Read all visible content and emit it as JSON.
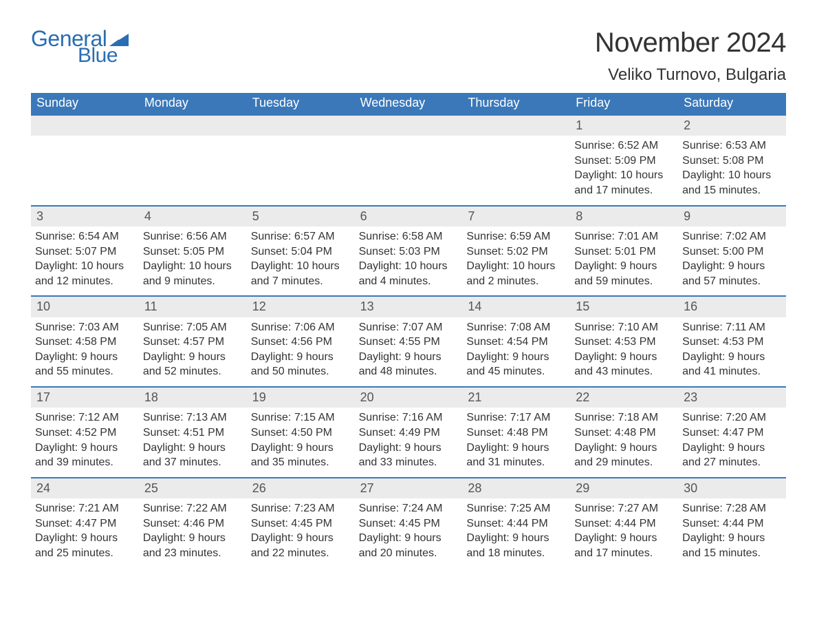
{
  "logo": {
    "text_general": "General",
    "text_blue": "Blue"
  },
  "title": "November 2024",
  "location": "Veliko Turnovo, Bulgaria",
  "colors": {
    "header_bg": "#3a78b9",
    "header_text": "#ffffff",
    "daynum_bg": "#ebebeb",
    "daynum_text": "#555555",
    "body_text": "#333333",
    "logo_color": "#2a6db3",
    "border": "#3a78b9",
    "background": "#ffffff"
  },
  "typography": {
    "title_fontsize": 40,
    "location_fontsize": 24,
    "weekday_fontsize": 18,
    "daynum_fontsize": 18,
    "body_fontsize": 16,
    "logo_fontsize": 32
  },
  "weekdays": [
    "Sunday",
    "Monday",
    "Tuesday",
    "Wednesday",
    "Thursday",
    "Friday",
    "Saturday"
  ],
  "first_day_of_week_index": 5,
  "days": [
    {
      "n": 1,
      "sunrise": "6:52 AM",
      "sunset": "5:09 PM",
      "daylight": "10 hours and 17 minutes."
    },
    {
      "n": 2,
      "sunrise": "6:53 AM",
      "sunset": "5:08 PM",
      "daylight": "10 hours and 15 minutes."
    },
    {
      "n": 3,
      "sunrise": "6:54 AM",
      "sunset": "5:07 PM",
      "daylight": "10 hours and 12 minutes."
    },
    {
      "n": 4,
      "sunrise": "6:56 AM",
      "sunset": "5:05 PM",
      "daylight": "10 hours and 9 minutes."
    },
    {
      "n": 5,
      "sunrise": "6:57 AM",
      "sunset": "5:04 PM",
      "daylight": "10 hours and 7 minutes."
    },
    {
      "n": 6,
      "sunrise": "6:58 AM",
      "sunset": "5:03 PM",
      "daylight": "10 hours and 4 minutes."
    },
    {
      "n": 7,
      "sunrise": "6:59 AM",
      "sunset": "5:02 PM",
      "daylight": "10 hours and 2 minutes."
    },
    {
      "n": 8,
      "sunrise": "7:01 AM",
      "sunset": "5:01 PM",
      "daylight": "9 hours and 59 minutes."
    },
    {
      "n": 9,
      "sunrise": "7:02 AM",
      "sunset": "5:00 PM",
      "daylight": "9 hours and 57 minutes."
    },
    {
      "n": 10,
      "sunrise": "7:03 AM",
      "sunset": "4:58 PM",
      "daylight": "9 hours and 55 minutes."
    },
    {
      "n": 11,
      "sunrise": "7:05 AM",
      "sunset": "4:57 PM",
      "daylight": "9 hours and 52 minutes."
    },
    {
      "n": 12,
      "sunrise": "7:06 AM",
      "sunset": "4:56 PM",
      "daylight": "9 hours and 50 minutes."
    },
    {
      "n": 13,
      "sunrise": "7:07 AM",
      "sunset": "4:55 PM",
      "daylight": "9 hours and 48 minutes."
    },
    {
      "n": 14,
      "sunrise": "7:08 AM",
      "sunset": "4:54 PM",
      "daylight": "9 hours and 45 minutes."
    },
    {
      "n": 15,
      "sunrise": "7:10 AM",
      "sunset": "4:53 PM",
      "daylight": "9 hours and 43 minutes."
    },
    {
      "n": 16,
      "sunrise": "7:11 AM",
      "sunset": "4:53 PM",
      "daylight": "9 hours and 41 minutes."
    },
    {
      "n": 17,
      "sunrise": "7:12 AM",
      "sunset": "4:52 PM",
      "daylight": "9 hours and 39 minutes."
    },
    {
      "n": 18,
      "sunrise": "7:13 AM",
      "sunset": "4:51 PM",
      "daylight": "9 hours and 37 minutes."
    },
    {
      "n": 19,
      "sunrise": "7:15 AM",
      "sunset": "4:50 PM",
      "daylight": "9 hours and 35 minutes."
    },
    {
      "n": 20,
      "sunrise": "7:16 AM",
      "sunset": "4:49 PM",
      "daylight": "9 hours and 33 minutes."
    },
    {
      "n": 21,
      "sunrise": "7:17 AM",
      "sunset": "4:48 PM",
      "daylight": "9 hours and 31 minutes."
    },
    {
      "n": 22,
      "sunrise": "7:18 AM",
      "sunset": "4:48 PM",
      "daylight": "9 hours and 29 minutes."
    },
    {
      "n": 23,
      "sunrise": "7:20 AM",
      "sunset": "4:47 PM",
      "daylight": "9 hours and 27 minutes."
    },
    {
      "n": 24,
      "sunrise": "7:21 AM",
      "sunset": "4:47 PM",
      "daylight": "9 hours and 25 minutes."
    },
    {
      "n": 25,
      "sunrise": "7:22 AM",
      "sunset": "4:46 PM",
      "daylight": "9 hours and 23 minutes."
    },
    {
      "n": 26,
      "sunrise": "7:23 AM",
      "sunset": "4:45 PM",
      "daylight": "9 hours and 22 minutes."
    },
    {
      "n": 27,
      "sunrise": "7:24 AM",
      "sunset": "4:45 PM",
      "daylight": "9 hours and 20 minutes."
    },
    {
      "n": 28,
      "sunrise": "7:25 AM",
      "sunset": "4:44 PM",
      "daylight": "9 hours and 18 minutes."
    },
    {
      "n": 29,
      "sunrise": "7:27 AM",
      "sunset": "4:44 PM",
      "daylight": "9 hours and 17 minutes."
    },
    {
      "n": 30,
      "sunrise": "7:28 AM",
      "sunset": "4:44 PM",
      "daylight": "9 hours and 15 minutes."
    }
  ],
  "labels": {
    "sunrise_prefix": "Sunrise: ",
    "sunset_prefix": "Sunset: ",
    "daylight_prefix": "Daylight: "
  }
}
